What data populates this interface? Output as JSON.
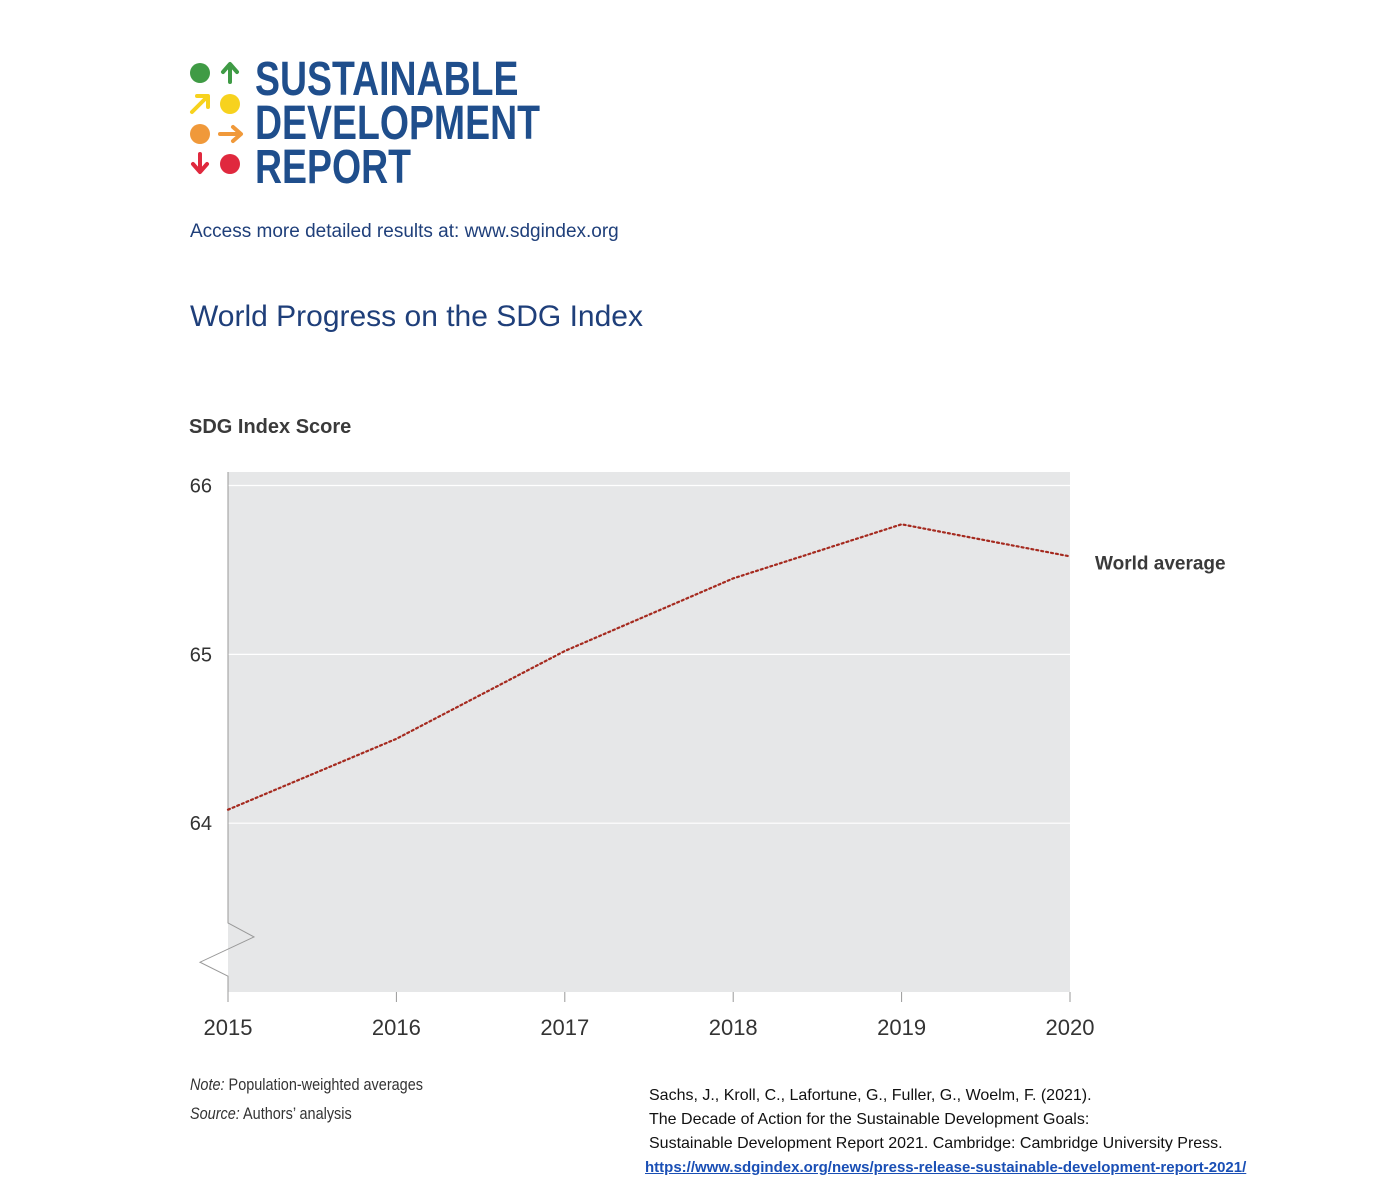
{
  "logo": {
    "lines": [
      "SUSTAINABLE",
      "DEVELOPMENT",
      "REPORT"
    ],
    "icon_colors": [
      "#3f9b45",
      "#f7d21e",
      "#f0993a",
      "#e0293e"
    ],
    "text_color": "#1f4e8c"
  },
  "access_text": "Access more detailed results at: www.sdgindex.org",
  "chart_data": {
    "type": "line",
    "title": "World Progress on the SDG Index",
    "ylabel": "SDG Index Score",
    "xlabel": "",
    "x": [
      2015,
      2016,
      2017,
      2018,
      2019,
      2020
    ],
    "x_tick_labels": [
      "2015",
      "2016",
      "2017",
      "2018",
      "2019",
      "2020"
    ],
    "y_tick_labels": [
      "66",
      "65",
      "64"
    ],
    "y_ticks": [
      66,
      65,
      64
    ],
    "ylim": [
      63,
      66.08
    ],
    "axis_break": true,
    "grid": true,
    "series": [
      {
        "name": "World average",
        "values": [
          64.08,
          64.5,
          65.02,
          65.45,
          65.77,
          65.58
        ],
        "color": "#a52a1f",
        "style": "dotted"
      }
    ],
    "legend": "direct label at line end"
  },
  "notes": {
    "note_label": "Note:",
    "note_text": " Population-weighted averages",
    "source_label": "Source:",
    "source_text": " Authors’ analysis"
  },
  "citation": {
    "lines": [
      "Sachs, J., Kroll, C., Lafortune, G., Fuller, G., Woelm, F. (2021).",
      "The Decade of Action for the Sustainable Development Goals:",
      "Sustainable Development Report 2021. Cambridge: Cambridge University Press."
    ],
    "link": "https://www.sdgindex.org/news/press-release-sustainable-development-report-2021/"
  }
}
